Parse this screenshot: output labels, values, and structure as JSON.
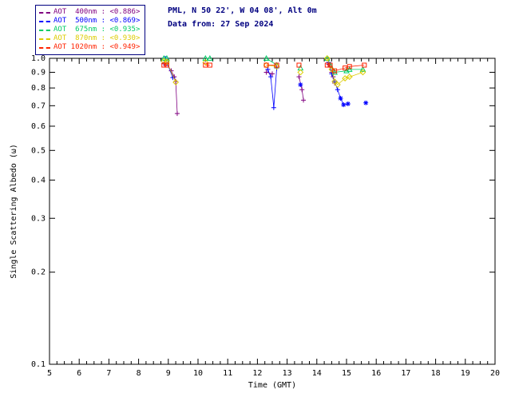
{
  "header": {
    "site_line": "PML, N 50 22', W 04 08', Alt 0m",
    "data_line": "Data from: 27 Sep 2024",
    "color": "#000080"
  },
  "legend": {
    "border_color": "#000080"
  },
  "chart_data": {
    "type": "scatter",
    "title": "",
    "xlabel": "Time (GMT)",
    "ylabel": "Single Scattering Albedo (ω)",
    "xlim": [
      5,
      20
    ],
    "ylim": [
      0.1,
      1.0
    ],
    "yscale": "log",
    "grid": false,
    "legend_position": "top-left",
    "frame_color": "#000000",
    "xticks": [
      5,
      6,
      7,
      8,
      9,
      10,
      11,
      12,
      13,
      14,
      15,
      16,
      17,
      18,
      19,
      20
    ],
    "yticks": [
      1.0,
      0.9,
      0.8,
      0.7,
      0.6,
      0.5,
      0.4,
      0.3,
      0.2,
      0.1
    ],
    "series": [
      {
        "name": "AOT 400nm",
        "label": "AOT  400nm",
        "mean": "<0.886>",
        "color": "#800080",
        "marker": "plus",
        "line": true,
        "points": [
          [
            8.85,
            0.96
          ],
          [
            8.95,
            0.96
          ],
          [
            9.1,
            0.91
          ],
          [
            9.2,
            0.87
          ],
          [
            9.25,
            0.84
          ],
          [
            9.3,
            0.66
          ],
          [
            12.3,
            0.9
          ],
          [
            12.5,
            0.89
          ],
          [
            13.4,
            0.87
          ],
          [
            13.5,
            0.79
          ],
          [
            13.55,
            0.73
          ],
          [
            14.4,
            0.955
          ],
          [
            14.5,
            0.9
          ],
          [
            14.55,
            0.87
          ],
          [
            14.6,
            0.83
          ]
        ]
      },
      {
        "name": "AOT 500nm",
        "label": "AOT  500nm",
        "mean": "<0.869>",
        "color": "#0000FF",
        "marker": "plus",
        "line": true,
        "points": [
          [
            8.9,
            1.0
          ],
          [
            9.15,
            0.865
          ],
          [
            12.35,
            0.92
          ],
          [
            12.45,
            0.87
          ],
          [
            12.55,
            0.69
          ],
          [
            12.65,
            0.93
          ],
          [
            13.45,
            0.82,
            "asterisk"
          ],
          [
            14.4,
            0.97
          ],
          [
            14.5,
            0.89
          ],
          [
            14.6,
            0.84
          ],
          [
            14.7,
            0.79
          ],
          [
            14.8,
            0.74,
            "asterisk"
          ],
          [
            14.9,
            0.705,
            "asterisk"
          ],
          [
            15.05,
            0.71,
            "asterisk"
          ],
          [
            15.65,
            0.715,
            "asterisk"
          ]
        ]
      },
      {
        "name": "AOT 675nm",
        "label": "AOT  675nm",
        "mean": "<0.935>",
        "color": "#00CC66",
        "marker": "triangle",
        "line": true,
        "points": [
          [
            8.85,
            1.0
          ],
          [
            8.95,
            1.0
          ],
          [
            10.25,
            1.0
          ],
          [
            10.4,
            1.0
          ],
          [
            12.3,
            1.0
          ],
          [
            12.65,
            0.95
          ],
          [
            13.45,
            0.93
          ],
          [
            14.35,
            1.0
          ],
          [
            14.45,
            0.95
          ],
          [
            14.6,
            0.9
          ],
          [
            15.0,
            0.91
          ],
          [
            15.1,
            0.92
          ],
          [
            15.55,
            0.92
          ]
        ]
      },
      {
        "name": "AOT 870nm",
        "label": "AOT  870nm",
        "mean": "<0.930>",
        "color": "#DDCC00",
        "marker": "diamond",
        "line": true,
        "points": [
          [
            8.85,
            0.98
          ],
          [
            8.95,
            0.975
          ],
          [
            9.25,
            0.835
          ],
          [
            10.25,
            0.97
          ],
          [
            12.3,
            0.95
          ],
          [
            12.65,
            0.94
          ],
          [
            13.45,
            0.9
          ],
          [
            14.35,
            1.0
          ],
          [
            14.5,
            0.92
          ],
          [
            14.6,
            0.84
          ],
          [
            14.7,
            0.82
          ],
          [
            14.95,
            0.86
          ],
          [
            15.1,
            0.87
          ],
          [
            15.55,
            0.9
          ]
        ]
      },
      {
        "name": "AOT 1020nm",
        "label": "AOT 1020nm",
        "mean": "<0.949>",
        "color": "#FF2200",
        "marker": "square",
        "line": true,
        "points": [
          [
            8.85,
            0.95
          ],
          [
            8.95,
            0.95
          ],
          [
            10.25,
            0.95
          ],
          [
            10.4,
            0.95
          ],
          [
            12.3,
            0.95
          ],
          [
            12.65,
            0.95
          ],
          [
            13.4,
            0.95
          ],
          [
            14.35,
            0.95
          ],
          [
            14.45,
            0.95
          ],
          [
            14.6,
            0.91
          ],
          [
            14.95,
            0.93
          ],
          [
            15.1,
            0.94
          ],
          [
            15.6,
            0.95
          ]
        ]
      }
    ]
  }
}
